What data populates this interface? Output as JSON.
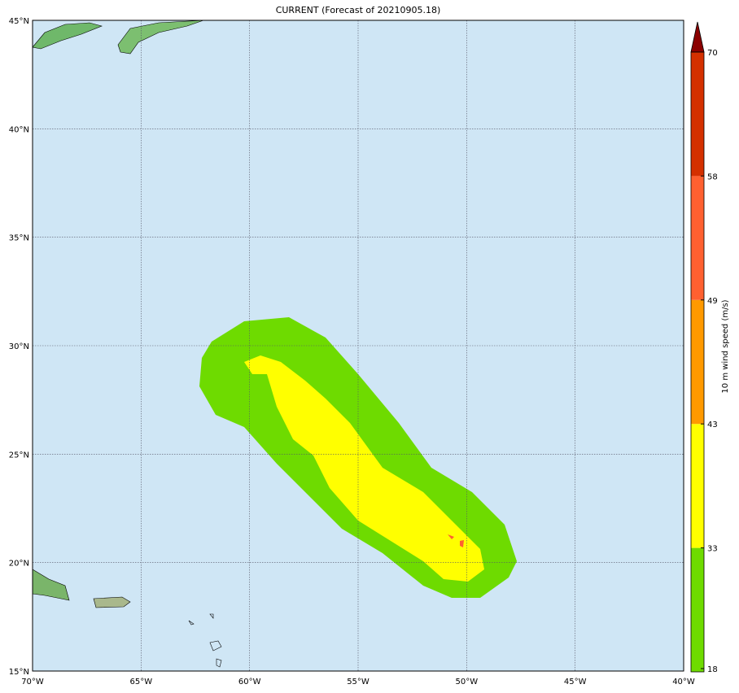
{
  "title": "CURRENT (Forecast of 20210905.18)",
  "map": {
    "lon_labels": [
      "70°W",
      "65°W",
      "60°W",
      "55°W",
      "50°W",
      "45°W",
      "40°W"
    ],
    "lat_labels": [
      "15°N",
      "20°N",
      "25°N",
      "30°N",
      "35°N",
      "40°N",
      "45°N"
    ]
  },
  "colorbar": {
    "label": "10 m wind speed (m/s)",
    "ticks": [
      18,
      33,
      43,
      49,
      58,
      70
    ],
    "colors": [
      "#6edb00",
      "#ffff00",
      "#ff9900",
      "#ff6030",
      "#d43000",
      "#8b0000"
    ]
  }
}
